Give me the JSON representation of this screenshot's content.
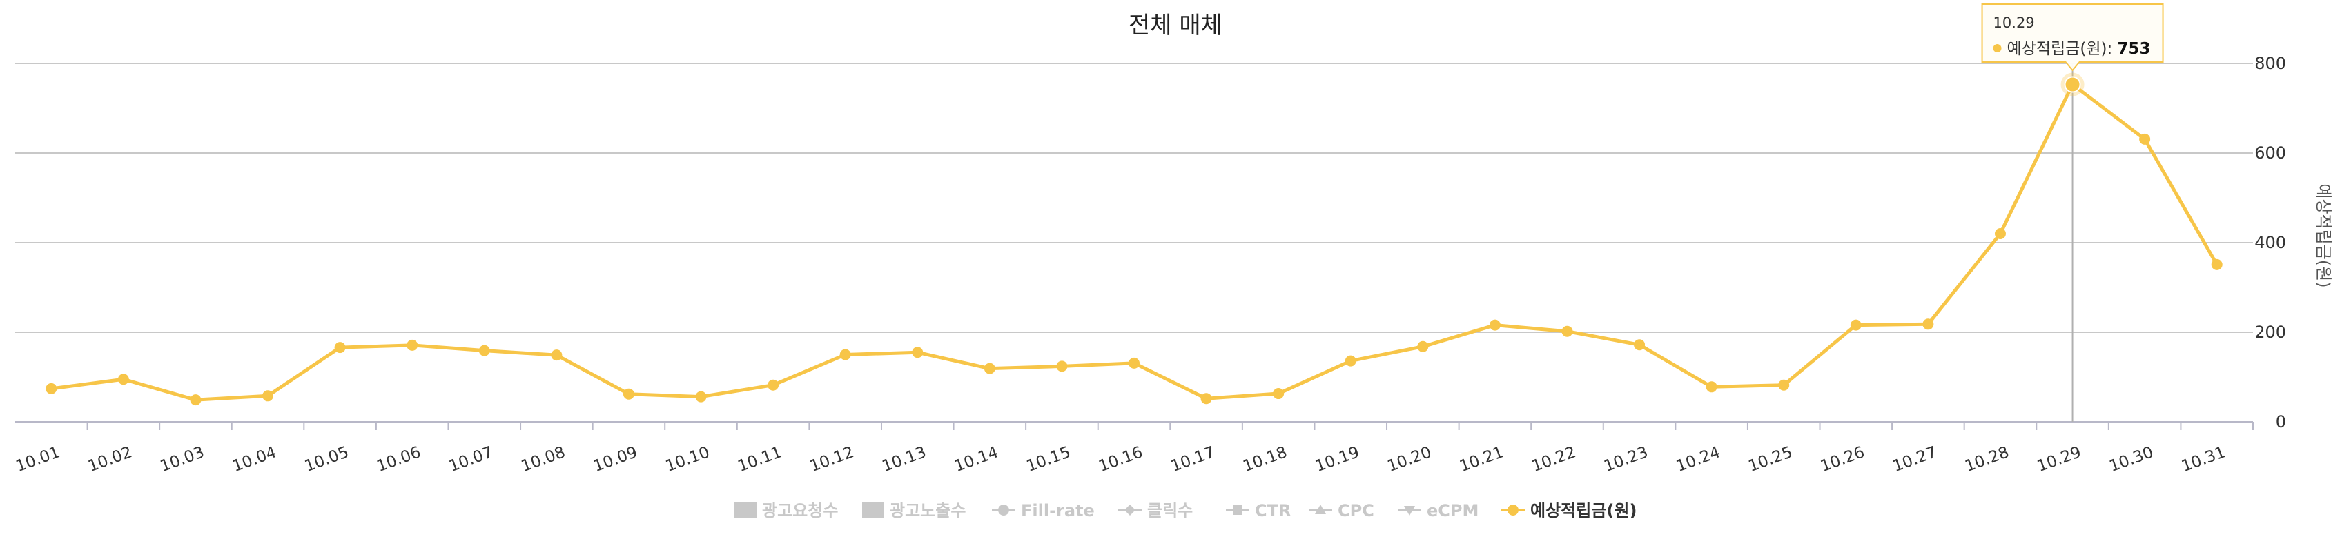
{
  "chart_data": {
    "type": "line",
    "title": "전체 매체",
    "ylabel": "예상적립금(원)",
    "ylim": [
      0,
      800
    ],
    "yticks": [
      0,
      200,
      400,
      600,
      800
    ],
    "grid": true,
    "legend_position": "bottom-center",
    "categories": [
      "10.01",
      "10.02",
      "10.03",
      "10.04",
      "10.05",
      "10.06",
      "10.07",
      "10.08",
      "10.09",
      "10.10",
      "10.11",
      "10.12",
      "10.13",
      "10.14",
      "10.15",
      "10.16",
      "10.17",
      "10.18",
      "10.19",
      "10.20",
      "10.21",
      "10.22",
      "10.23",
      "10.24",
      "10.25",
      "10.26",
      "10.27",
      "10.28",
      "10.29",
      "10.30",
      "10.31"
    ],
    "weekend_categories": [
      "10.03",
      "10.04",
      "10.10",
      "10.11",
      "10.17",
      "10.18",
      "10.24",
      "10.25",
      "10.31"
    ],
    "series": [
      {
        "name": "예상적립금(원)",
        "color": "#f7c548",
        "values": [
          74,
          95,
          49,
          58,
          166,
          171,
          159,
          149,
          62,
          56,
          82,
          150,
          155,
          119,
          124,
          131,
          52,
          63,
          136,
          168,
          216,
          202,
          172,
          78,
          82,
          216,
          218,
          420,
          753,
          631,
          351
        ]
      }
    ],
    "legend": [
      {
        "label": "광고요청수",
        "marker": "square",
        "active": false
      },
      {
        "label": "광고노출수",
        "marker": "square",
        "active": false
      },
      {
        "label": "Fill-rate",
        "marker": "circle",
        "active": false
      },
      {
        "label": "클릭수",
        "marker": "diamond",
        "active": false
      },
      {
        "label": "CTR",
        "marker": "square-small",
        "active": false
      },
      {
        "label": "CPC",
        "marker": "triangle",
        "active": false
      },
      {
        "label": "eCPM",
        "marker": "triangle-down",
        "active": false
      },
      {
        "label": "예상적립금(원)",
        "marker": "circle",
        "active": true
      }
    ],
    "tooltip": {
      "category": "10.29",
      "label": "예상적립금(원): ",
      "value": "753"
    },
    "colors": {
      "line": "#f7c548",
      "weekend": "#e0201b",
      "grid": "#c8c8c8",
      "inactive": "#c8c8c8"
    }
  }
}
